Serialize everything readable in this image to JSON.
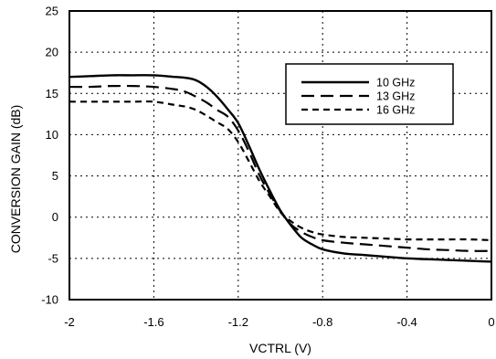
{
  "chart_data": {
    "type": "line",
    "title": "",
    "xlabel": "VCTRL (V)",
    "ylabel": "CONVERSION GAIN (dB)",
    "xlim": [
      -2,
      0
    ],
    "ylim": [
      -10,
      25
    ],
    "xticks": [
      -2,
      -1.6,
      -1.2,
      -0.8,
      -0.4,
      0
    ],
    "xtick_labels": [
      "-2",
      "-1.6",
      "-1.2",
      "-0.8",
      "-0.4",
      "0"
    ],
    "yticks": [
      -10,
      -5,
      0,
      5,
      10,
      15,
      20,
      25
    ],
    "ytick_labels": [
      "-10",
      "-5",
      "0",
      "5",
      "10",
      "15",
      "20",
      "25"
    ],
    "grid": true,
    "grid_style": "dotted",
    "legend_position": "upper-right",
    "series": [
      {
        "name": "10 GHz",
        "style": "solid",
        "color": "#000000",
        "x": [
          -2.0,
          -1.9,
          -1.8,
          -1.7,
          -1.6,
          -1.5,
          -1.45,
          -1.4,
          -1.35,
          -1.3,
          -1.25,
          -1.2,
          -1.15,
          -1.1,
          -1.05,
          -1.0,
          -0.95,
          -0.9,
          -0.85,
          -0.8,
          -0.7,
          -0.6,
          -0.5,
          -0.4,
          -0.3,
          -0.2,
          -0.1,
          0.0
        ],
        "y": [
          17.0,
          17.1,
          17.2,
          17.2,
          17.2,
          17.0,
          16.9,
          16.6,
          15.8,
          14.6,
          13.1,
          11.4,
          8.7,
          5.8,
          3.2,
          0.8,
          -1.0,
          -2.5,
          -3.3,
          -3.9,
          -4.4,
          -4.6,
          -4.8,
          -5.0,
          -5.1,
          -5.2,
          -5.3,
          -5.4
        ]
      },
      {
        "name": "13 GHz",
        "style": "long-dash",
        "color": "#000000",
        "x": [
          -2.0,
          -1.9,
          -1.8,
          -1.7,
          -1.6,
          -1.5,
          -1.45,
          -1.4,
          -1.35,
          -1.3,
          -1.25,
          -1.2,
          -1.15,
          -1.1,
          -1.05,
          -1.0,
          -0.95,
          -0.9,
          -0.85,
          -0.8,
          -0.7,
          -0.6,
          -0.5,
          -0.4,
          -0.3,
          -0.2,
          -0.1,
          0.0
        ],
        "y": [
          15.8,
          15.8,
          15.9,
          15.9,
          15.8,
          15.5,
          15.2,
          14.6,
          13.9,
          13.0,
          12.2,
          10.5,
          8.0,
          5.1,
          2.8,
          0.7,
          -0.9,
          -1.8,
          -2.4,
          -2.8,
          -3.1,
          -3.3,
          -3.5,
          -3.7,
          -3.9,
          -4.0,
          -4.1,
          -4.1
        ]
      },
      {
        "name": "16 GHz",
        "style": "dash",
        "color": "#000000",
        "x": [
          -2.0,
          -1.9,
          -1.8,
          -1.7,
          -1.6,
          -1.5,
          -1.45,
          -1.4,
          -1.35,
          -1.3,
          -1.25,
          -1.2,
          -1.15,
          -1.1,
          -1.05,
          -1.0,
          -0.95,
          -0.9,
          -0.85,
          -0.8,
          -0.7,
          -0.6,
          -0.5,
          -0.4,
          -0.3,
          -0.2,
          -0.1,
          0.0
        ],
        "y": [
          14.0,
          14.0,
          14.0,
          14.0,
          14.0,
          13.6,
          13.4,
          13.0,
          12.3,
          11.5,
          10.7,
          9.1,
          6.8,
          4.4,
          2.5,
          0.6,
          -0.5,
          -1.3,
          -1.8,
          -2.1,
          -2.4,
          -2.5,
          -2.6,
          -2.7,
          -2.7,
          -2.7,
          -2.7,
          -2.8
        ]
      }
    ]
  }
}
